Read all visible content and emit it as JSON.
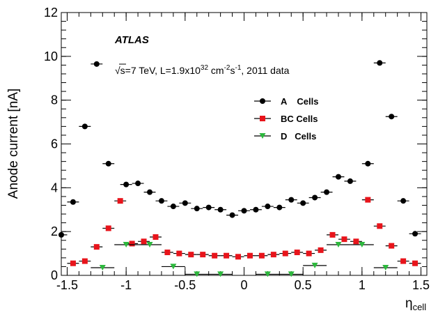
{
  "chart_data": {
    "type": "scatter",
    "title": "",
    "experiment_label": "ATLAS",
    "conditions": {
      "sqrt_s_prefix": "√s=7 TeV, L=1.9x10",
      "lumi_exponent": "32",
      "units_middle": " cm",
      "cm_exponent": "-2",
      "units_s": "s",
      "s_exponent": "-1",
      "suffix": ", 2011 data"
    },
    "xlabel_main": "η",
    "xlabel_sub": "cell",
    "ylabel": "Anode current [nA]",
    "xlim": [
      -1.55,
      1.55
    ],
    "ylim": [
      0,
      12
    ],
    "xticks": [
      -1.5,
      -1,
      -0.5,
      0,
      0.5,
      1,
      1.5
    ],
    "xtick_labels": [
      "-1.5",
      "-1",
      "-0.5",
      "0",
      "0.5",
      "1",
      "1.5"
    ],
    "yticks": [
      0,
      2,
      4,
      6,
      8,
      10,
      12
    ],
    "ytick_labels": [
      "0",
      "2",
      "4",
      "6",
      "8",
      "10",
      "12"
    ],
    "grid": false,
    "legend_position": "upper-center",
    "series": [
      {
        "name": "A    Cells",
        "marker": "circle",
        "color": "#000000",
        "points": [
          {
            "x": -1.55,
            "y": 1.85
          },
          {
            "x": -1.45,
            "y": 3.35
          },
          {
            "x": -1.35,
            "y": 6.8
          },
          {
            "x": -1.25,
            "y": 9.65
          },
          {
            "x": -1.15,
            "y": 5.1
          },
          {
            "x": -1.0,
            "y": 4.15
          },
          {
            "x": -0.9,
            "y": 4.2
          },
          {
            "x": -0.8,
            "y": 3.8
          },
          {
            "x": -0.7,
            "y": 3.4
          },
          {
            "x": -0.6,
            "y": 3.15
          },
          {
            "x": -0.5,
            "y": 3.3
          },
          {
            "x": -0.4,
            "y": 3.05
          },
          {
            "x": -0.3,
            "y": 3.1
          },
          {
            "x": -0.2,
            "y": 3.0
          },
          {
            "x": -0.1,
            "y": 2.75
          },
          {
            "x": 0.0,
            "y": 2.95
          },
          {
            "x": 0.1,
            "y": 3.0
          },
          {
            "x": 0.2,
            "y": 3.15
          },
          {
            "x": 0.3,
            "y": 3.1
          },
          {
            "x": 0.4,
            "y": 3.45
          },
          {
            "x": 0.5,
            "y": 3.3
          },
          {
            "x": 0.6,
            "y": 3.55
          },
          {
            "x": 0.7,
            "y": 3.8
          },
          {
            "x": 0.8,
            "y": 4.5
          },
          {
            "x": 0.9,
            "y": 4.3
          },
          {
            "x": 1.05,
            "y": 5.1
          },
          {
            "x": 1.15,
            "y": 9.7
          },
          {
            "x": 1.25,
            "y": 7.25
          },
          {
            "x": 1.35,
            "y": 3.4
          },
          {
            "x": 1.45,
            "y": 1.9
          }
        ]
      },
      {
        "name": "BC Cells",
        "marker": "square",
        "color": "#e8141b",
        "points": [
          {
            "x": -1.45,
            "y": 0.55
          },
          {
            "x": -1.35,
            "y": 0.65
          },
          {
            "x": -1.25,
            "y": 1.3
          },
          {
            "x": -1.15,
            "y": 2.15
          },
          {
            "x": -1.05,
            "y": 3.4
          },
          {
            "x": -0.95,
            "y": 1.45
          },
          {
            "x": -0.85,
            "y": 1.55
          },
          {
            "x": -0.75,
            "y": 1.75
          },
          {
            "x": -0.65,
            "y": 1.05
          },
          {
            "x": -0.55,
            "y": 1.0
          },
          {
            "x": -0.45,
            "y": 0.95
          },
          {
            "x": -0.35,
            "y": 0.95
          },
          {
            "x": -0.25,
            "y": 0.9
          },
          {
            "x": -0.15,
            "y": 0.9
          },
          {
            "x": -0.05,
            "y": 0.85
          },
          {
            "x": 0.05,
            "y": 0.9
          },
          {
            "x": 0.15,
            "y": 0.9
          },
          {
            "x": 0.25,
            "y": 0.95
          },
          {
            "x": 0.35,
            "y": 1.0
          },
          {
            "x": 0.45,
            "y": 1.05
          },
          {
            "x": 0.55,
            "y": 1.0
          },
          {
            "x": 0.65,
            "y": 1.15
          },
          {
            "x": 0.75,
            "y": 1.85
          },
          {
            "x": 0.85,
            "y": 1.65
          },
          {
            "x": 0.95,
            "y": 1.55
          },
          {
            "x": 1.05,
            "y": 3.45
          },
          {
            "x": 1.15,
            "y": 2.25
          },
          {
            "x": 1.25,
            "y": 1.35
          },
          {
            "x": 1.35,
            "y": 0.65
          },
          {
            "x": 1.45,
            "y": 0.55
          }
        ]
      },
      {
        "name": "D   Cells",
        "marker": "triangle-down",
        "color": "#2db83d",
        "points": [
          {
            "x": -1.2,
            "y": 0.35
          },
          {
            "x": -1.0,
            "y": 1.4
          },
          {
            "x": -0.8,
            "y": 1.4
          },
          {
            "x": -0.6,
            "y": 0.4
          },
          {
            "x": -0.4,
            "y": 0.05
          },
          {
            "x": -0.2,
            "y": 0.05
          },
          {
            "x": 0.2,
            "y": 0.05
          },
          {
            "x": 0.4,
            "y": 0.05
          },
          {
            "x": 0.6,
            "y": 0.45
          },
          {
            "x": 0.8,
            "y": 1.4
          },
          {
            "x": 1.0,
            "y": 1.4
          },
          {
            "x": 1.2,
            "y": 0.35
          }
        ]
      }
    ]
  }
}
